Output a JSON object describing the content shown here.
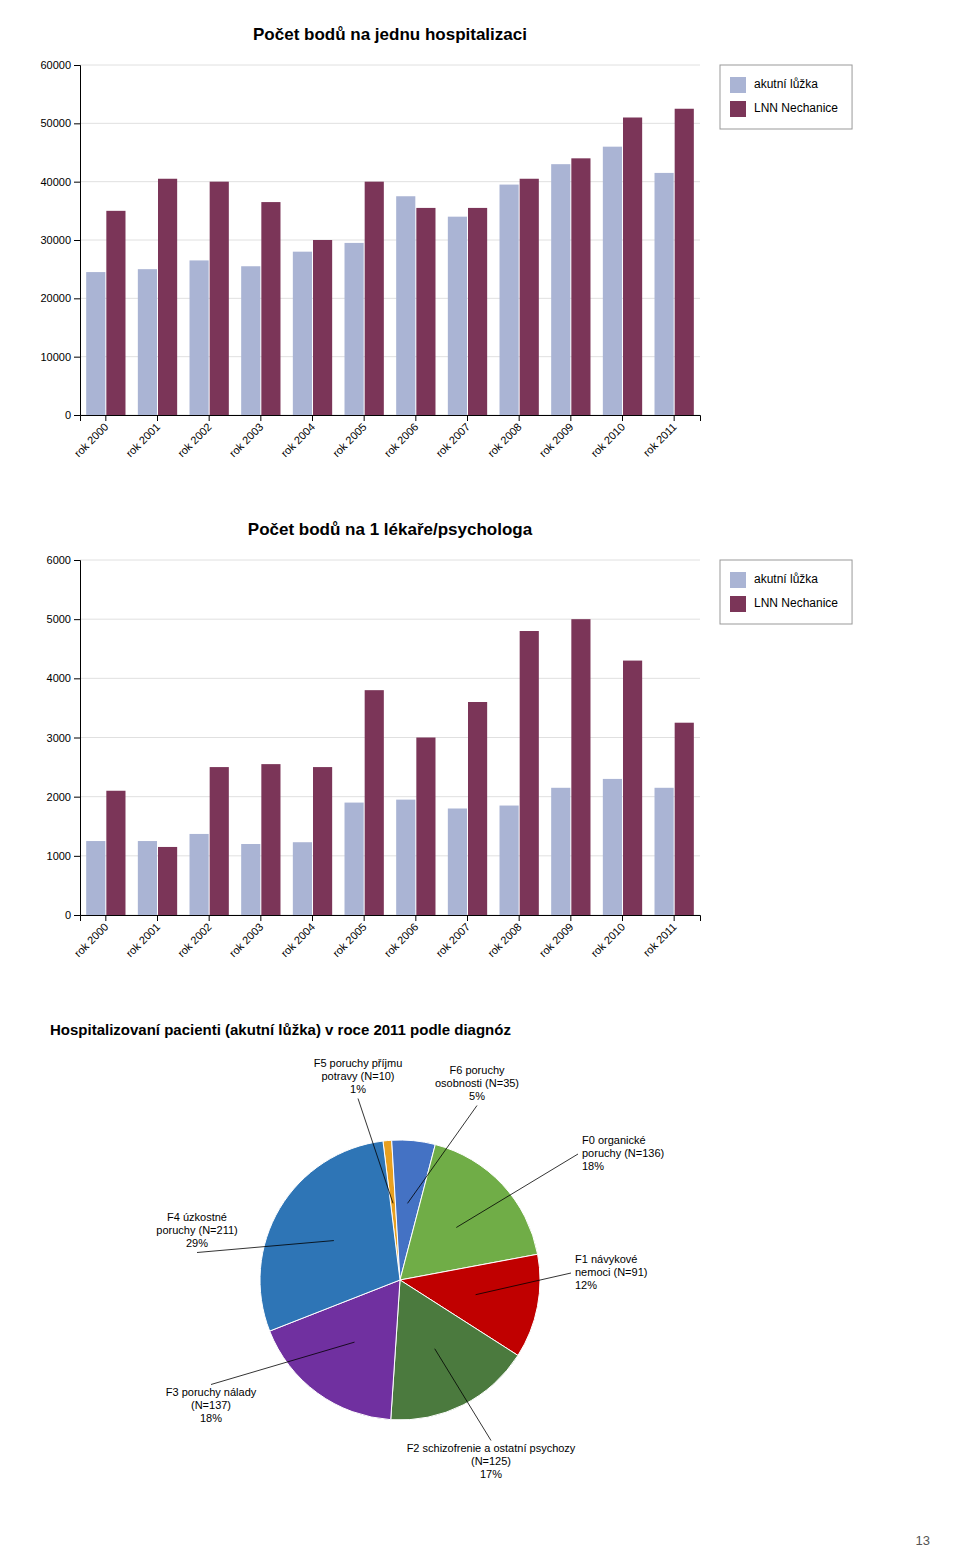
{
  "chart_data": [
    {
      "type": "bar",
      "title": "Počet bodů na jednu hospitalizaci",
      "categories": [
        "rok 2000",
        "rok 2001",
        "rok 2002",
        "rok 2003",
        "rok 2004",
        "rok 2005",
        "rok 2006",
        "rok 2007",
        "rok 2008",
        "rok 2009",
        "rok 2010",
        "rok 2011"
      ],
      "series": [
        {
          "name": "akutní lůžka",
          "color": "#aab4d4",
          "values": [
            24500,
            25000,
            26500,
            25500,
            28000,
            29500,
            37500,
            34000,
            39500,
            43000,
            46000,
            41500
          ]
        },
        {
          "name": "LNN Nechanice",
          "color": "#7b3558",
          "values": [
            35000,
            40500,
            40000,
            36500,
            30000,
            40000,
            35500,
            35500,
            40500,
            44000,
            51000,
            52500
          ]
        }
      ],
      "ylim": [
        0,
        60000
      ],
      "yticks": [
        0,
        10000,
        20000,
        30000,
        40000,
        50000,
        60000
      ],
      "grid": true,
      "legend": "upper right"
    },
    {
      "type": "bar",
      "title": "Počet bodů na 1 lékaře/psychologa",
      "categories": [
        "rok 2000",
        "rok 2001",
        "rok 2002",
        "rok 2003",
        "rok 2004",
        "rok 2005",
        "rok 2006",
        "rok 2007",
        "rok 2008",
        "rok 2009",
        "rok 2010",
        "rok 2011"
      ],
      "series": [
        {
          "name": "akutní lůžka",
          "color": "#aab4d4",
          "values": [
            1250,
            1250,
            1370,
            1200,
            1230,
            1900,
            1950,
            1800,
            1850,
            2150,
            2300,
            2150
          ]
        },
        {
          "name": "LNN Nechanice",
          "color": "#7b3558",
          "values": [
            2100,
            1150,
            2500,
            2550,
            2500,
            3800,
            3000,
            3600,
            4800,
            5000,
            4300,
            3250
          ]
        }
      ],
      "ylim": [
        0,
        6000
      ],
      "yticks": [
        0,
        1000,
        2000,
        3000,
        4000,
        5000,
        6000
      ],
      "grid": true,
      "legend": "upper right"
    },
    {
      "type": "pie",
      "title": "Hospitalizovaní pacienti (akutní lůžka) v roce 2011 podle diagnóz",
      "categories": [
        "F5 poruchy příjmu\npotravy (N=10)",
        "F6 poruchy\nosobnosti (N=35)",
        "F0 organické\nporuchy (N=136)",
        "F1 návykové\nnemoci (N=91)",
        "F2 schizofrenie a ostatní psychozy\n(N=125)",
        "F3 poruchy nálady\n(N=137)",
        "F4 úzkostné\nporuchy (N=211)"
      ],
      "values": [
        1,
        5,
        18,
        12,
        17,
        18,
        29
      ],
      "value_labels": [
        "1%",
        "5%",
        "18%",
        "12%",
        "17%",
        "18%",
        "29%"
      ],
      "colors": [
        "#e8a020",
        "#4472c4",
        "#70ad47",
        "#c00000",
        "#4b7a3e",
        "#7030a0",
        "#2e75b6"
      ],
      "data_labels": true,
      "annotations": [
        "13"
      ]
    }
  ]
}
